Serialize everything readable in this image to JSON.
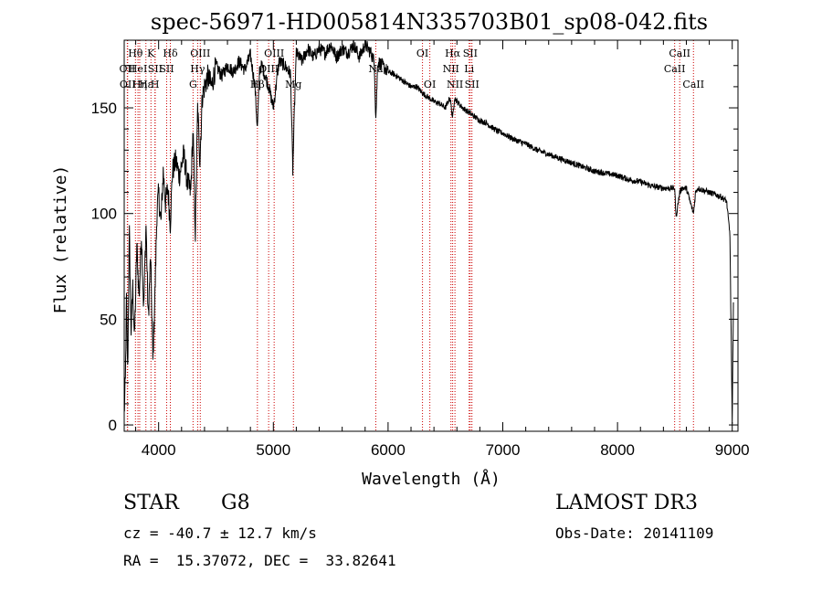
{
  "chart_data": {
    "type": "line",
    "title": "spec-56971-HD005814N335703B01_sp08-042.fits",
    "xlabel": "Wavelength (Å)",
    "ylabel": "Flux (relative)",
    "xlim": [
      3700,
      9050
    ],
    "ylim": [
      -3,
      182
    ],
    "xticks": [
      4000,
      5000,
      6000,
      7000,
      8000,
      9000
    ],
    "yticks": [
      0,
      50,
      100,
      150
    ],
    "series": [
      {
        "name": "flux",
        "color": "#000000",
        "x": [
          3700,
          3710,
          3720,
          3730,
          3745,
          3760,
          3775,
          3790,
          3810,
          3830,
          3850,
          3870,
          3890,
          3910,
          3930,
          3950,
          3968,
          3985,
          4000,
          4020,
          4040,
          4060,
          4080,
          4102,
          4120,
          4150,
          4180,
          4220,
          4250,
          4280,
          4300,
          4320,
          4340,
          4360,
          4380,
          4400,
          4430,
          4460,
          4500,
          4550,
          4600,
          4650,
          4700,
          4750,
          4800,
          4840,
          4861,
          4880,
          4900,
          4930,
          4960,
          5000,
          5050,
          5100,
          5150,
          5170,
          5184,
          5200,
          5250,
          5300,
          5350,
          5400,
          5450,
          5500,
          5550,
          5600,
          5650,
          5700,
          5750,
          5800,
          5850,
          5880,
          5893,
          5910,
          5950,
          6000,
          6050,
          6100,
          6150,
          6200,
          6250,
          6300,
          6350,
          6400,
          6450,
          6500,
          6540,
          6563,
          6580,
          6600,
          6650,
          6700,
          6750,
          6800,
          6850,
          6900,
          6950,
          7000,
          7100,
          7200,
          7300,
          7400,
          7500,
          7600,
          7700,
          7800,
          7900,
          8000,
          8100,
          8200,
          8300,
          8400,
          8498,
          8510,
          8542,
          8560,
          8600,
          8662,
          8680,
          8700,
          8750,
          8800,
          8850,
          8900,
          8950,
          8980,
          9000,
          9010
        ],
        "values": [
          5,
          20,
          60,
          25,
          90,
          45,
          65,
          40,
          85,
          60,
          90,
          55,
          95,
          50,
          80,
          30,
          62,
          100,
          110,
          95,
          120,
          105,
          112,
          95,
          120,
          125,
          118,
          128,
          115,
          110,
          140,
          90,
          150,
          125,
          155,
          160,
          165,
          160,
          170,
          165,
          170,
          167,
          172,
          168,
          175,
          160,
          140,
          168,
          170,
          165,
          160,
          150,
          172,
          170,
          166,
          120,
          150,
          176,
          172,
          178,
          174,
          178,
          176,
          180,
          174,
          178,
          176,
          180,
          174,
          180,
          176,
          172,
          145,
          172,
          170,
          167,
          166,
          164,
          162,
          160,
          160,
          157,
          155,
          153,
          152,
          150,
          155,
          145,
          155,
          153,
          150,
          148,
          146,
          144,
          143,
          141,
          139,
          138,
          135,
          133,
          130,
          128,
          126,
          124,
          122,
          120,
          119,
          118,
          116,
          115,
          113,
          112,
          112,
          98,
          110,
          112,
          112,
          100,
          110,
          112,
          111,
          110,
          109,
          108,
          106,
          90,
          0,
          58
        ]
      }
    ],
    "lines": [
      {
        "wavelength": 3727,
        "label": "OII",
        "row": 2
      },
      {
        "wavelength": 3730,
        "label": "OII",
        "row": 3
      },
      {
        "wavelength": 3798,
        "label": "Hθ",
        "row": 1
      },
      {
        "wavelength": 3820,
        "label": "HeI",
        "row": 2
      },
      {
        "wavelength": 3835,
        "label": "Hη",
        "row": 3
      },
      {
        "wavelength": 3889,
        "label": "Hε",
        "row": 3
      },
      {
        "wavelength": 3933,
        "label": "K",
        "row": 1
      },
      {
        "wavelength": 3968,
        "label": "H",
        "row": 3
      },
      {
        "wavelength": 3970,
        "label": "SII",
        "row": 2
      },
      {
        "wavelength": 4102,
        "label": "Hδ",
        "row": 1
      },
      {
        "wavelength": 4070,
        "label": "SII",
        "row": 2
      },
      {
        "wavelength": 4300,
        "label": "G",
        "row": 3
      },
      {
        "wavelength": 4340,
        "label": "Hγ",
        "row": 2
      },
      {
        "wavelength": 4363,
        "label": "OIII",
        "row": 1
      },
      {
        "wavelength": 4861,
        "label": "Hβ",
        "row": 3
      },
      {
        "wavelength": 4959,
        "label": "OIII",
        "row": 2
      },
      {
        "wavelength": 5007,
        "label": "OIII",
        "row": 1
      },
      {
        "wavelength": 5175,
        "label": "Mg",
        "row": 3
      },
      {
        "wavelength": 5893,
        "label": "Na",
        "row": 2
      },
      {
        "wavelength": 6300,
        "label": "OI",
        "row": 1
      },
      {
        "wavelength": 6364,
        "label": "OI",
        "row": 3
      },
      {
        "wavelength": 6548,
        "label": "NII",
        "row": 2
      },
      {
        "wavelength": 6563,
        "label": "Hα",
        "row": 1
      },
      {
        "wavelength": 6583,
        "label": "NII",
        "row": 3
      },
      {
        "wavelength": 6707,
        "label": "Li",
        "row": 2
      },
      {
        "wavelength": 6716,
        "label": "SII",
        "row": 1
      },
      {
        "wavelength": 6731,
        "label": "SII",
        "row": 3
      },
      {
        "wavelength": 8498,
        "label": "CaII",
        "row": 2
      },
      {
        "wavelength": 8542,
        "label": "CaII",
        "row": 1
      },
      {
        "wavelength": 8662,
        "label": "CaII",
        "row": 3
      }
    ],
    "colors": {
      "spectrum": "#000000",
      "line_marker": "#cc0000",
      "axis": "#000000"
    }
  },
  "info": {
    "object_class": "STAR",
    "subclass": "G8",
    "survey": "LAMOST DR3",
    "cz_text": "cz = -40.7 ± 12.7 km/s",
    "obs_date_text": "Obs-Date: 20141109",
    "radec_text": "RA =  15.37072, DEC =  33.82641"
  }
}
